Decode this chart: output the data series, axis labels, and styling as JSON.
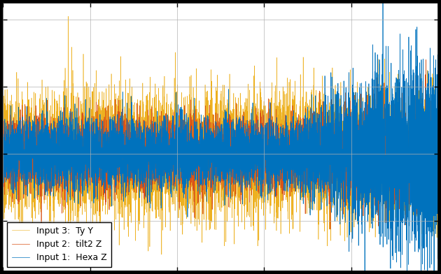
{
  "title": "",
  "xlabel": "",
  "ylabel": "",
  "legend_labels": [
    "Input 1:  Hexa Z",
    "Input 2:  tilt2 Z",
    "Input 3:  Ty Y"
  ],
  "line_colors": [
    "#0072BD",
    "#D95319",
    "#EDB120"
  ],
  "background_color": "#000000",
  "plot_bg_color": "#ffffff",
  "grid_color": "#b0b0b0",
  "n_points": 10000,
  "seed": 7,
  "ylim": [
    -3.5,
    4.5
  ],
  "xlim": [
    0,
    10000
  ],
  "figsize": [
    6.3,
    3.92
  ],
  "dpi": 100,
  "legend_loc": "lower left",
  "legend_fontsize": 9,
  "tick_fontsize": 9,
  "spike_x": 1500,
  "spike_height_up": 4.1,
  "spike_height_down": -3.2,
  "transition_x": 6600
}
